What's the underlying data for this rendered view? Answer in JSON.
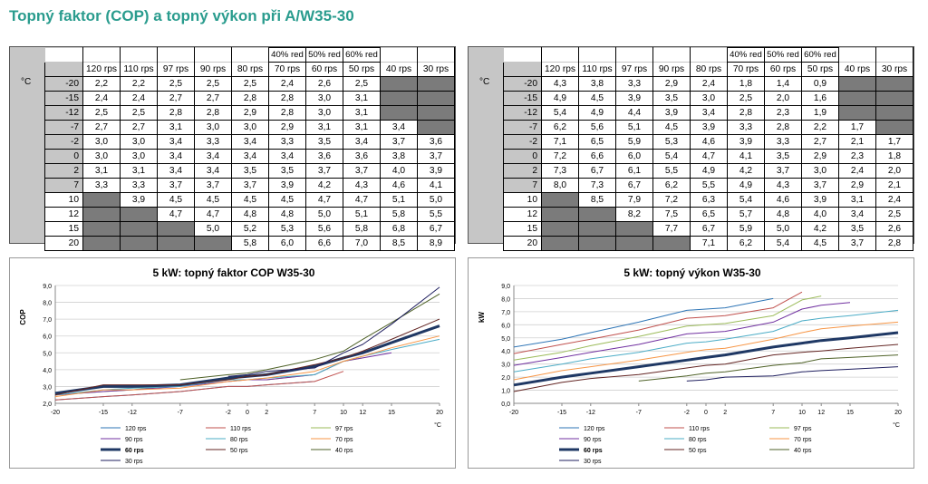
{
  "title": "Topný faktor (COP) a topný výkon při A/W35-30",
  "tables": [
    {
      "unit_label": "°C",
      "reduced_labels": [
        "40% red",
        "50% red",
        "60% red"
      ],
      "columns": [
        "120 rps",
        "110 rps",
        "97 rps",
        "90 rps",
        "80 rps",
        "70 rps",
        "60 rps",
        "50 rps",
        "40 rps",
        "30 rps"
      ],
      "rows": [
        {
          "temp": "-20",
          "values": [
            "2,2",
            "2,2",
            "2,5",
            "2,5",
            "2,5",
            "2,4",
            "2,6",
            "2,5",
            null,
            null
          ]
        },
        {
          "temp": "-15",
          "values": [
            "2,4",
            "2,4",
            "2,7",
            "2,7",
            "2,8",
            "2,8",
            "3,0",
            "3,1",
            null,
            null
          ]
        },
        {
          "temp": "-12",
          "values": [
            "2,5",
            "2,5",
            "2,8",
            "2,8",
            "2,9",
            "2,8",
            "3,0",
            "3,1",
            null,
            null
          ]
        },
        {
          "temp": "-7",
          "values": [
            "2,7",
            "2,7",
            "3,1",
            "3,0",
            "3,0",
            "2,9",
            "3,1",
            "3,1",
            "3,4",
            null
          ]
        },
        {
          "temp": "-2",
          "values": [
            "3,0",
            "3,0",
            "3,4",
            "3,3",
            "3,4",
            "3,3",
            "3,5",
            "3,4",
            "3,7",
            "3,6"
          ]
        },
        {
          "temp": "0",
          "values": [
            "3,0",
            "3,0",
            "3,4",
            "3,4",
            "3,4",
            "3,4",
            "3,6",
            "3,6",
            "3,8",
            "3,7"
          ]
        },
        {
          "temp": "2",
          "values": [
            "3,1",
            "3,1",
            "3,4",
            "3,4",
            "3,5",
            "3,5",
            "3,7",
            "3,7",
            "4,0",
            "3,9"
          ]
        },
        {
          "temp": "7",
          "values": [
            "3,3",
            "3,3",
            "3,7",
            "3,7",
            "3,7",
            "3,9",
            "4,2",
            "4,3",
            "4,6",
            "4,1"
          ]
        },
        {
          "temp": "10",
          "values": [
            null,
            "3,9",
            "4,5",
            "4,5",
            "4,5",
            "4,5",
            "4,7",
            "4,7",
            "5,1",
            "5,0"
          ]
        },
        {
          "temp": "12",
          "values": [
            null,
            null,
            "4,7",
            "4,7",
            "4,8",
            "4,8",
            "5,0",
            "5,1",
            "5,8",
            "5,5"
          ]
        },
        {
          "temp": "15",
          "values": [
            null,
            null,
            null,
            "5,0",
            "5,2",
            "5,3",
            "5,6",
            "5,8",
            "6,8",
            "6,7"
          ]
        },
        {
          "temp": "20",
          "values": [
            null,
            null,
            null,
            null,
            "5,8",
            "6,0",
            "6,6",
            "7,0",
            "8,5",
            "8,9"
          ]
        }
      ]
    },
    {
      "unit_label": "°C",
      "reduced_labels": [
        "40% red",
        "50% red",
        "60% red"
      ],
      "columns": [
        "120 rps",
        "110 rps",
        "97 rps",
        "90 rps",
        "80 rps",
        "70 rps",
        "60 rps",
        "50 rps",
        "40 rps",
        "30 rps"
      ],
      "rows": [
        {
          "temp": "-20",
          "values": [
            "4,3",
            "3,8",
            "3,3",
            "2,9",
            "2,4",
            "1,8",
            "1,4",
            "0,9",
            null,
            null
          ]
        },
        {
          "temp": "-15",
          "values": [
            "4,9",
            "4,5",
            "3,9",
            "3,5",
            "3,0",
            "2,5",
            "2,0",
            "1,6",
            null,
            null
          ]
        },
        {
          "temp": "-12",
          "values": [
            "5,4",
            "4,9",
            "4,4",
            "3,9",
            "3,4",
            "2,8",
            "2,3",
            "1,9",
            null,
            null
          ]
        },
        {
          "temp": "-7",
          "values": [
            "6,2",
            "5,6",
            "5,1",
            "4,5",
            "3,9",
            "3,3",
            "2,8",
            "2,2",
            "1,7",
            null
          ]
        },
        {
          "temp": "-2",
          "values": [
            "7,1",
            "6,5",
            "5,9",
            "5,3",
            "4,6",
            "3,9",
            "3,3",
            "2,7",
            "2,1",
            "1,7"
          ]
        },
        {
          "temp": "0",
          "values": [
            "7,2",
            "6,6",
            "6,0",
            "5,4",
            "4,7",
            "4,1",
            "3,5",
            "2,9",
            "2,3",
            "1,8"
          ]
        },
        {
          "temp": "2",
          "values": [
            "7,3",
            "6,7",
            "6,1",
            "5,5",
            "4,9",
            "4,2",
            "3,7",
            "3,0",
            "2,4",
            "2,0"
          ]
        },
        {
          "temp": "7",
          "values": [
            "8,0",
            "7,3",
            "6,7",
            "6,2",
            "5,5",
            "4,9",
            "4,3",
            "3,7",
            "2,9",
            "2,1"
          ]
        },
        {
          "temp": "10",
          "values": [
            null,
            "8,5",
            "7,9",
            "7,2",
            "6,3",
            "5,4",
            "4,6",
            "3,9",
            "3,1",
            "2,4"
          ]
        },
        {
          "temp": "12",
          "values": [
            null,
            null,
            "8,2",
            "7,5",
            "6,5",
            "5,7",
            "4,8",
            "4,0",
            "3,4",
            "2,5"
          ]
        },
        {
          "temp": "15",
          "values": [
            null,
            null,
            null,
            "7,7",
            "6,7",
            "5,9",
            "5,0",
            "4,2",
            "3,5",
            "2,6"
          ]
        },
        {
          "temp": "20",
          "values": [
            null,
            null,
            null,
            null,
            "7,1",
            "6,2",
            "5,4",
            "4,5",
            "3,7",
            "2,8"
          ]
        }
      ]
    }
  ],
  "chart_data": [
    {
      "type": "line",
      "title": "5 kW: topný faktor COP W35-30",
      "xlabel": "°C",
      "ylabel": "COP",
      "x": [
        -20,
        -15,
        -12,
        -7,
        -2,
        0,
        2,
        7,
        10,
        12,
        15,
        20
      ],
      "xticks": [
        -20,
        -15,
        -12,
        -7,
        -2,
        0,
        2,
        7,
        10,
        12,
        15,
        20
      ],
      "ylim": [
        2.0,
        9.0
      ],
      "yticks": [
        "2,0",
        "3,0",
        "4,0",
        "5,0",
        "6,0",
        "7,0",
        "8,0",
        "9,0"
      ],
      "grid": true,
      "legend_position": "bottom",
      "series": [
        {
          "name": "120 rps",
          "color": "#2e75b6",
          "width": 1,
          "values": [
            2.2,
            2.4,
            2.5,
            2.7,
            3.0,
            3.0,
            3.1,
            3.3,
            null,
            null,
            null,
            null
          ]
        },
        {
          "name": "110 rps",
          "color": "#c0504d",
          "width": 1,
          "values": [
            2.2,
            2.4,
            2.5,
            2.7,
            3.0,
            3.0,
            3.1,
            3.3,
            3.9,
            null,
            null,
            null
          ]
        },
        {
          "name": "97 rps",
          "color": "#9bbb59",
          "width": 1,
          "values": [
            2.5,
            2.7,
            2.8,
            3.1,
            3.4,
            3.4,
            3.4,
            3.7,
            4.5,
            4.7,
            null,
            null
          ]
        },
        {
          "name": "90 rps",
          "color": "#7030a0",
          "width": 1,
          "values": [
            2.5,
            2.7,
            2.8,
            3.0,
            3.3,
            3.4,
            3.4,
            3.7,
            4.5,
            4.7,
            5.0,
            null
          ]
        },
        {
          "name": "80 rps",
          "color": "#4bacc6",
          "width": 1,
          "values": [
            2.5,
            2.8,
            2.9,
            3.0,
            3.4,
            3.4,
            3.5,
            3.7,
            4.5,
            4.8,
            5.2,
            5.8
          ]
        },
        {
          "name": "70 rps",
          "color": "#f79646",
          "width": 1,
          "values": [
            2.4,
            2.8,
            2.8,
            2.9,
            3.3,
            3.4,
            3.5,
            3.9,
            4.5,
            4.8,
            5.3,
            6.0
          ]
        },
        {
          "name": "60 rps",
          "color": "#1f3864",
          "width": 3,
          "values": [
            2.6,
            3.0,
            3.0,
            3.1,
            3.5,
            3.6,
            3.7,
            4.2,
            4.7,
            5.0,
            5.6,
            6.6
          ]
        },
        {
          "name": "50 rps",
          "color": "#632523",
          "width": 1,
          "values": [
            2.5,
            3.1,
            3.1,
            3.1,
            3.4,
            3.6,
            3.7,
            4.3,
            4.7,
            5.1,
            5.8,
            7.0
          ]
        },
        {
          "name": "40 rps",
          "color": "#4f6228",
          "width": 1,
          "values": [
            null,
            null,
            null,
            3.4,
            3.7,
            3.8,
            4.0,
            4.6,
            5.1,
            5.8,
            6.8,
            8.5
          ]
        },
        {
          "name": "30 rps",
          "color": "#1f1f5f",
          "width": 1,
          "values": [
            null,
            null,
            null,
            null,
            3.6,
            3.7,
            3.9,
            4.1,
            5.0,
            5.5,
            6.7,
            8.9
          ]
        }
      ]
    },
    {
      "type": "line",
      "title": "5 kW: topný výkon W35-30",
      "xlabel": "°C",
      "ylabel": "kW",
      "x": [
        -20,
        -15,
        -12,
        -7,
        -2,
        0,
        2,
        7,
        10,
        12,
        15,
        20
      ],
      "xticks": [
        -20,
        -15,
        -12,
        -7,
        -2,
        0,
        2,
        7,
        10,
        12,
        15,
        20
      ],
      "ylim": [
        0.0,
        9.0
      ],
      "yticks": [
        "0,0",
        "1,0",
        "2,0",
        "3,0",
        "4,0",
        "5,0",
        "6,0",
        "7,0",
        "8,0",
        "9,0"
      ],
      "grid": true,
      "legend_position": "bottom",
      "series": [
        {
          "name": "120 rps",
          "color": "#2e75b6",
          "width": 1,
          "values": [
            4.3,
            4.9,
            5.4,
            6.2,
            7.1,
            7.2,
            7.3,
            8.0,
            null,
            null,
            null,
            null
          ]
        },
        {
          "name": "110 rps",
          "color": "#c0504d",
          "width": 1,
          "values": [
            3.8,
            4.5,
            4.9,
            5.6,
            6.5,
            6.6,
            6.7,
            7.3,
            8.5,
            null,
            null,
            null
          ]
        },
        {
          "name": "97 rps",
          "color": "#9bbb59",
          "width": 1,
          "values": [
            3.3,
            3.9,
            4.4,
            5.1,
            5.9,
            6.0,
            6.1,
            6.7,
            7.9,
            8.2,
            null,
            null
          ]
        },
        {
          "name": "90 rps",
          "color": "#7030a0",
          "width": 1,
          "values": [
            2.9,
            3.5,
            3.9,
            4.5,
            5.3,
            5.4,
            5.5,
            6.2,
            7.2,
            7.5,
            7.7,
            null
          ]
        },
        {
          "name": "80 rps",
          "color": "#4bacc6",
          "width": 1,
          "values": [
            2.4,
            3.0,
            3.4,
            3.9,
            4.6,
            4.7,
            4.9,
            5.5,
            6.3,
            6.5,
            6.7,
            7.1
          ]
        },
        {
          "name": "70 rps",
          "color": "#f79646",
          "width": 1,
          "values": [
            1.8,
            2.5,
            2.8,
            3.3,
            3.9,
            4.1,
            4.2,
            4.9,
            5.4,
            5.7,
            5.9,
            6.2
          ]
        },
        {
          "name": "60 rps",
          "color": "#1f3864",
          "width": 3,
          "values": [
            1.4,
            2.0,
            2.3,
            2.8,
            3.3,
            3.5,
            3.7,
            4.3,
            4.6,
            4.8,
            5.0,
            5.4
          ]
        },
        {
          "name": "50 rps",
          "color": "#632523",
          "width": 1,
          "values": [
            0.9,
            1.6,
            1.9,
            2.2,
            2.7,
            2.9,
            3.0,
            3.7,
            3.9,
            4.0,
            4.2,
            4.5
          ]
        },
        {
          "name": "40 rps",
          "color": "#4f6228",
          "width": 1,
          "values": [
            null,
            null,
            null,
            1.7,
            2.1,
            2.3,
            2.4,
            2.9,
            3.1,
            3.4,
            3.5,
            3.7
          ]
        },
        {
          "name": "30 rps",
          "color": "#1f1f5f",
          "width": 1,
          "values": [
            null,
            null,
            null,
            null,
            1.7,
            1.8,
            2.0,
            2.1,
            2.4,
            2.5,
            2.6,
            2.8
          ]
        }
      ]
    }
  ]
}
